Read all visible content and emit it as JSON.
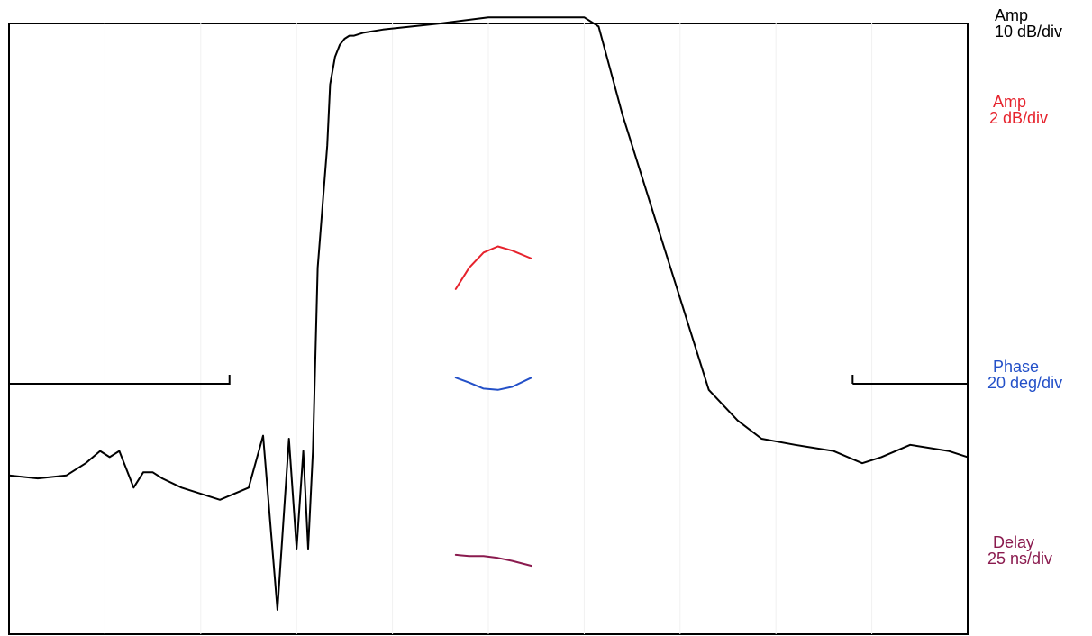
{
  "chart_data": {
    "type": "line",
    "title": "",
    "xlabel": "",
    "ylabel": "",
    "grid": true,
    "xlim": [
      0,
      10
    ],
    "ylim": [
      0,
      10
    ],
    "series": [
      {
        "name": "Amp 10 dB/div",
        "color": "#000000",
        "x": [
          0,
          0.3,
          0.6,
          0.8,
          0.95,
          1.05,
          1.15,
          1.3,
          1.4,
          1.5,
          1.6,
          1.8,
          2.2,
          2.5,
          2.65,
          2.8,
          2.92,
          3.0,
          3.07,
          3.12,
          3.17,
          3.22,
          3.27,
          3.32,
          3.35,
          3.4,
          3.45,
          3.5,
          3.55,
          3.6,
          3.7,
          3.9,
          4.5,
          5.0,
          5.5,
          6.0,
          6.15,
          6.4,
          6.7,
          7.0,
          7.3,
          7.6,
          7.85,
          8.2,
          8.6,
          8.9,
          9.1,
          9.4,
          9.8,
          10.0
        ],
        "y": [
          2.6,
          2.55,
          2.6,
          2.8,
          3.0,
          2.9,
          3.0,
          2.4,
          2.65,
          2.65,
          2.55,
          2.4,
          2.2,
          2.4,
          3.25,
          0.4,
          3.2,
          1.4,
          3.0,
          1.4,
          3.0,
          6.0,
          7.0,
          8.0,
          9.0,
          9.45,
          9.65,
          9.75,
          9.8,
          9.8,
          9.85,
          9.9,
          10.0,
          10.1,
          10.1,
          10.1,
          9.95,
          8.5,
          7.0,
          5.5,
          4.0,
          3.5,
          3.2,
          3.1,
          3.0,
          2.8,
          2.9,
          3.1,
          3.0,
          2.9
        ]
      },
      {
        "name": "Amp 2 dB/div",
        "color": "#e6222c",
        "x": [
          4.66,
          4.8,
          4.95,
          5.1,
          5.25,
          5.45
        ],
        "y": [
          5.65,
          6.0,
          6.25,
          6.35,
          6.28,
          6.15
        ]
      },
      {
        "name": "Phase 20 deg/div",
        "color": "#2350c8",
        "x": [
          4.66,
          4.8,
          4.95,
          5.1,
          5.25,
          5.45
        ],
        "y": [
          4.2,
          4.12,
          4.02,
          4.0,
          4.05,
          4.2
        ]
      },
      {
        "name": "Delay 25 ns/div",
        "color": "#8a1a4e",
        "x": [
          4.66,
          4.8,
          4.95,
          5.1,
          5.25,
          5.45
        ],
        "y": [
          1.3,
          1.28,
          1.28,
          1.25,
          1.2,
          1.12
        ]
      }
    ],
    "reference_lines": [
      {
        "x": [
          0,
          2.3
        ],
        "y": [
          4.1,
          4.1
        ],
        "end_tick": true
      },
      {
        "x": [
          8.8,
          10.0
        ],
        "y": [
          4.1,
          4.1
        ],
        "start_tick": true
      }
    ],
    "scale_labels": [
      {
        "id": "amp-10",
        "line1": "Amp",
        "line2": "10 dB/div",
        "color": "#000000"
      },
      {
        "id": "amp-2",
        "line1": "Amp",
        "line2": "2 dB/div",
        "color": "#e6222c"
      },
      {
        "id": "phase",
        "line1": "Phase",
        "line2": "20 deg/div",
        "color": "#2350c8"
      },
      {
        "id": "delay",
        "line1": "Delay",
        "line2": "25 ns/div",
        "color": "#8a1a4e"
      }
    ]
  }
}
